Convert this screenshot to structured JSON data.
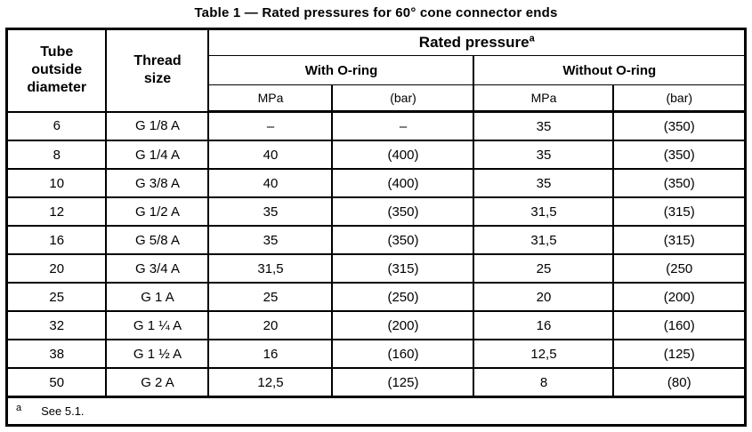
{
  "title": "Table 1 — Rated pressures for 60° cone connector ends",
  "table": {
    "headers": {
      "tube_outside_diameter": "Tube outside diameter",
      "thread_size": "Thread size",
      "rated_pressure": "Rated pressure",
      "rated_pressure_note_ref": "a",
      "with_oring": "With O-ring",
      "without_oring": "Without O-ring",
      "unit_mpa": "MPa",
      "unit_bar": "(bar)"
    },
    "rows": [
      [
        "6",
        "G 1/8 A",
        "–",
        "–",
        "35",
        "(350)"
      ],
      [
        "8",
        "G 1/4 A",
        "40",
        "(400)",
        "35",
        "(350)"
      ],
      [
        "10",
        "G 3/8 A",
        "40",
        "(400)",
        "35",
        "(350)"
      ],
      [
        "12",
        "G 1/2 A",
        "35",
        "(350)",
        "31,5",
        "(315)"
      ],
      [
        "16",
        "G 5/8 A",
        "35",
        "(350)",
        "31,5",
        "(315)"
      ],
      [
        "20",
        "G 3/4 A",
        "31,5",
        "(315)",
        "25",
        "(250"
      ],
      [
        "25",
        "G 1 A",
        "25",
        "(250)",
        "20",
        "(200)"
      ],
      [
        "32",
        "G 1 ¼ A",
        "20",
        "(200)",
        "16",
        "(160)"
      ],
      [
        "38",
        "G 1 ½ A",
        "16",
        "(160)",
        "12,5",
        "(125)"
      ],
      [
        "50",
        "G 2 A",
        "12,5",
        "(125)",
        "8",
        "(80)"
      ]
    ],
    "footnote": {
      "ref": "a",
      "text": "See 5.1."
    }
  },
  "colors": {
    "text": "#000000",
    "border": "#000000",
    "background": "#ffffff"
  }
}
